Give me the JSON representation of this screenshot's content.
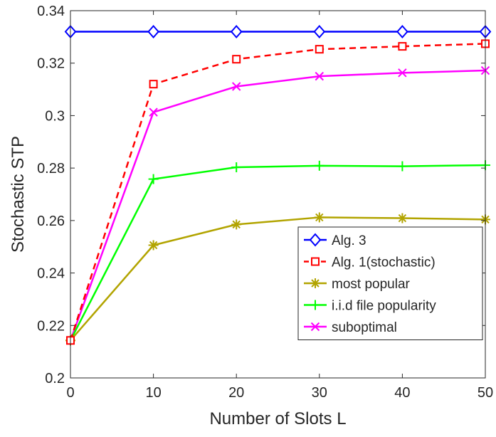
{
  "chart_data": {
    "type": "line",
    "title": "",
    "xlabel": "Number of Slots L",
    "ylabel": "Stochastic STP",
    "xlim": [
      0,
      50
    ],
    "ylim": [
      0.2,
      0.34
    ],
    "xticks": [
      0,
      10,
      20,
      30,
      40,
      50
    ],
    "xtick_labels": [
      "0",
      "10",
      "20",
      "30",
      "40",
      "50"
    ],
    "yticks": [
      0.2,
      0.22,
      0.24,
      0.26,
      0.28,
      0.3,
      0.32,
      0.34
    ],
    "ytick_labels": [
      "0.2",
      "0.22",
      "0.24",
      "0.26",
      "0.28",
      "0.3",
      "0.32",
      "0.34"
    ],
    "grid": false,
    "legend_position": "bottom-right",
    "x": [
      0,
      10,
      20,
      30,
      40,
      50
    ],
    "series": [
      {
        "name": "Alg. 3",
        "color": "#0000ff",
        "dash": "solid",
        "marker": "diamond",
        "values": [
          0.332,
          0.332,
          0.332,
          0.332,
          0.332,
          0.332
        ]
      },
      {
        "name": "Alg. 1(stochastic)",
        "color": "#ff0000",
        "dash": "dashed",
        "marker": "square",
        "values": [
          0.2143,
          0.312,
          0.3215,
          0.3253,
          0.3264,
          0.3274
        ]
      },
      {
        "name": "most popular",
        "color": "#b2a400",
        "dash": "solid",
        "marker": "asterisk",
        "values": [
          0.2143,
          0.2506,
          0.2585,
          0.2612,
          0.2609,
          0.2604
        ]
      },
      {
        "name": "i.i.d file popularity",
        "color": "#00ff00",
        "dash": "solid",
        "marker": "plus",
        "values": [
          0.2143,
          0.2758,
          0.2803,
          0.2809,
          0.2807,
          0.2811
        ]
      },
      {
        "name": "suboptimal",
        "color": "#ff00ff",
        "dash": "solid",
        "marker": "x",
        "values": [
          0.2143,
          0.3013,
          0.3111,
          0.315,
          0.3163,
          0.3172
        ]
      }
    ]
  }
}
